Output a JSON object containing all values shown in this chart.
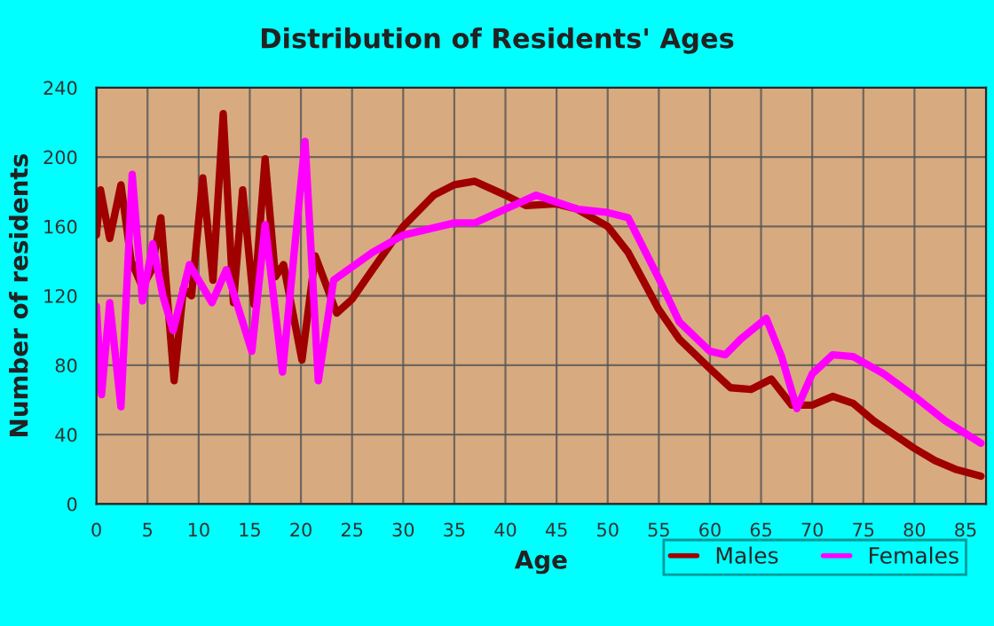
{
  "chart_data": {
    "type": "line",
    "title": "Distribution of Residents' Ages",
    "xlabel": "Age",
    "ylabel": "Number of residents",
    "xlim": [
      0,
      87
    ],
    "xticks": [
      0,
      5,
      10,
      15,
      20,
      25,
      30,
      35,
      40,
      45,
      50,
      55,
      60,
      65,
      70,
      75,
      80,
      85
    ],
    "ylim": [
      0,
      240
    ],
    "yticks": [
      0,
      40,
      80,
      120,
      160,
      200,
      240
    ],
    "grid": true,
    "legend": "bottom right",
    "series": [
      {
        "name": "Males",
        "color": "#a00000",
        "x": [
          0,
          0.4,
          1.3,
          2.4,
          3.4,
          4.5,
          5.4,
          6.3,
          7.6,
          8.5,
          9.3,
          10.4,
          11.4,
          12.4,
          13.4,
          14.3,
          15.4,
          16.5,
          17.5,
          18.3,
          20.1,
          21.4,
          23.5,
          25,
          27,
          30,
          33,
          35,
          37,
          40,
          42,
          45,
          47,
          50,
          52,
          55,
          57,
          60,
          62,
          64,
          66,
          68,
          70,
          72,
          74,
          76,
          78,
          80,
          82,
          84,
          86.5
        ],
        "values": [
          155,
          181,
          153,
          184,
          140,
          125,
          135,
          165,
          71,
          124,
          120,
          188,
          129,
          225,
          116,
          181,
          115,
          199,
          131,
          138,
          83,
          143,
          110,
          118,
          135,
          160,
          178,
          184,
          186,
          178,
          172,
          173,
          170,
          160,
          145,
          112,
          95,
          78,
          67,
          66,
          72,
          57,
          57,
          62,
          58,
          48,
          40,
          32,
          25,
          20,
          16
        ]
      },
      {
        "name": "Females",
        "color": "#ff00ff",
        "x": [
          0,
          0.5,
          1.3,
          2.4,
          3.5,
          4.5,
          5.5,
          6.5,
          7.5,
          9.1,
          11.3,
          12.7,
          15.2,
          16.5,
          18.2,
          20.4,
          21.7,
          23.2,
          27,
          30,
          35,
          37,
          40,
          43,
          47,
          50,
          52,
          55,
          57,
          60,
          61.5,
          63,
          65.5,
          67,
          68.5,
          70,
          72,
          74,
          77,
          80,
          83,
          86.5
        ],
        "values": [
          114,
          63,
          116,
          56,
          190,
          117,
          150,
          120,
          100,
          138,
          116,
          135,
          88,
          161,
          76,
          209,
          71,
          129,
          145,
          155,
          162,
          162,
          170,
          178,
          170,
          168,
          165,
          130,
          105,
          88,
          86,
          95,
          107,
          85,
          55,
          75,
          86,
          85,
          75,
          62,
          48,
          35
        ]
      }
    ]
  }
}
